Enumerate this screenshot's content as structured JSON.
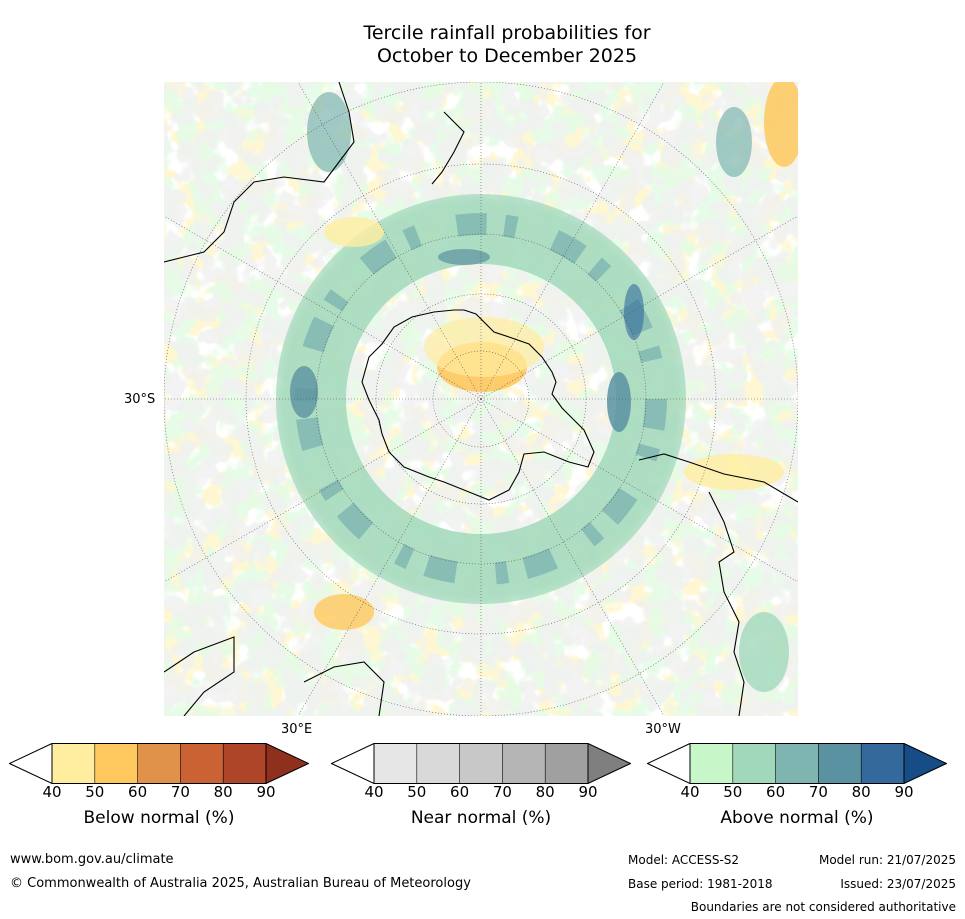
{
  "title": [
    "Tercile rainfall probabilities for",
    "October to December 2025"
  ],
  "map": {
    "projection": "south polar stereographic",
    "lat_label": "30°S",
    "lon_labels": [
      "30°E",
      "30°W"
    ]
  },
  "colorbars": [
    {
      "label": "Below normal (%)",
      "ticks": [
        "40",
        "50",
        "60",
        "70",
        "80",
        "90"
      ],
      "colors": [
        "#ffffff",
        "#ffeda0",
        "#fec85e",
        "#e0924a",
        "#cb6233",
        "#ae4528",
        "#8f2f1e"
      ]
    },
    {
      "label": "Near normal (%)",
      "ticks": [
        "40",
        "50",
        "60",
        "70",
        "80",
        "90"
      ],
      "colors": [
        "#ffffff",
        "#e6e6e6",
        "#d9d9d9",
        "#c8c8c8",
        "#b5b5b5",
        "#a0a0a0",
        "#7f7f7f"
      ]
    },
    {
      "label": "Above normal (%)",
      "ticks": [
        "40",
        "50",
        "60",
        "70",
        "80",
        "90"
      ],
      "colors": [
        "#ffffff",
        "#c7f7c9",
        "#a1d8bb",
        "#7eb5b0",
        "#5b92a1",
        "#336a9b",
        "#164d87"
      ]
    }
  ],
  "footer": {
    "url": "www.bom.gov.au/climate",
    "copyright": "© Commonwealth of Australia 2025, Australian Bureau of Meteorology",
    "model": "Model: ACCESS-S2",
    "base_period": "Base period: 1981-2018",
    "model_run": "Model run: 21/07/2025",
    "issued": "Issued: 23/07/2025",
    "disclaimer": "Boundaries are not considered authoritative"
  }
}
